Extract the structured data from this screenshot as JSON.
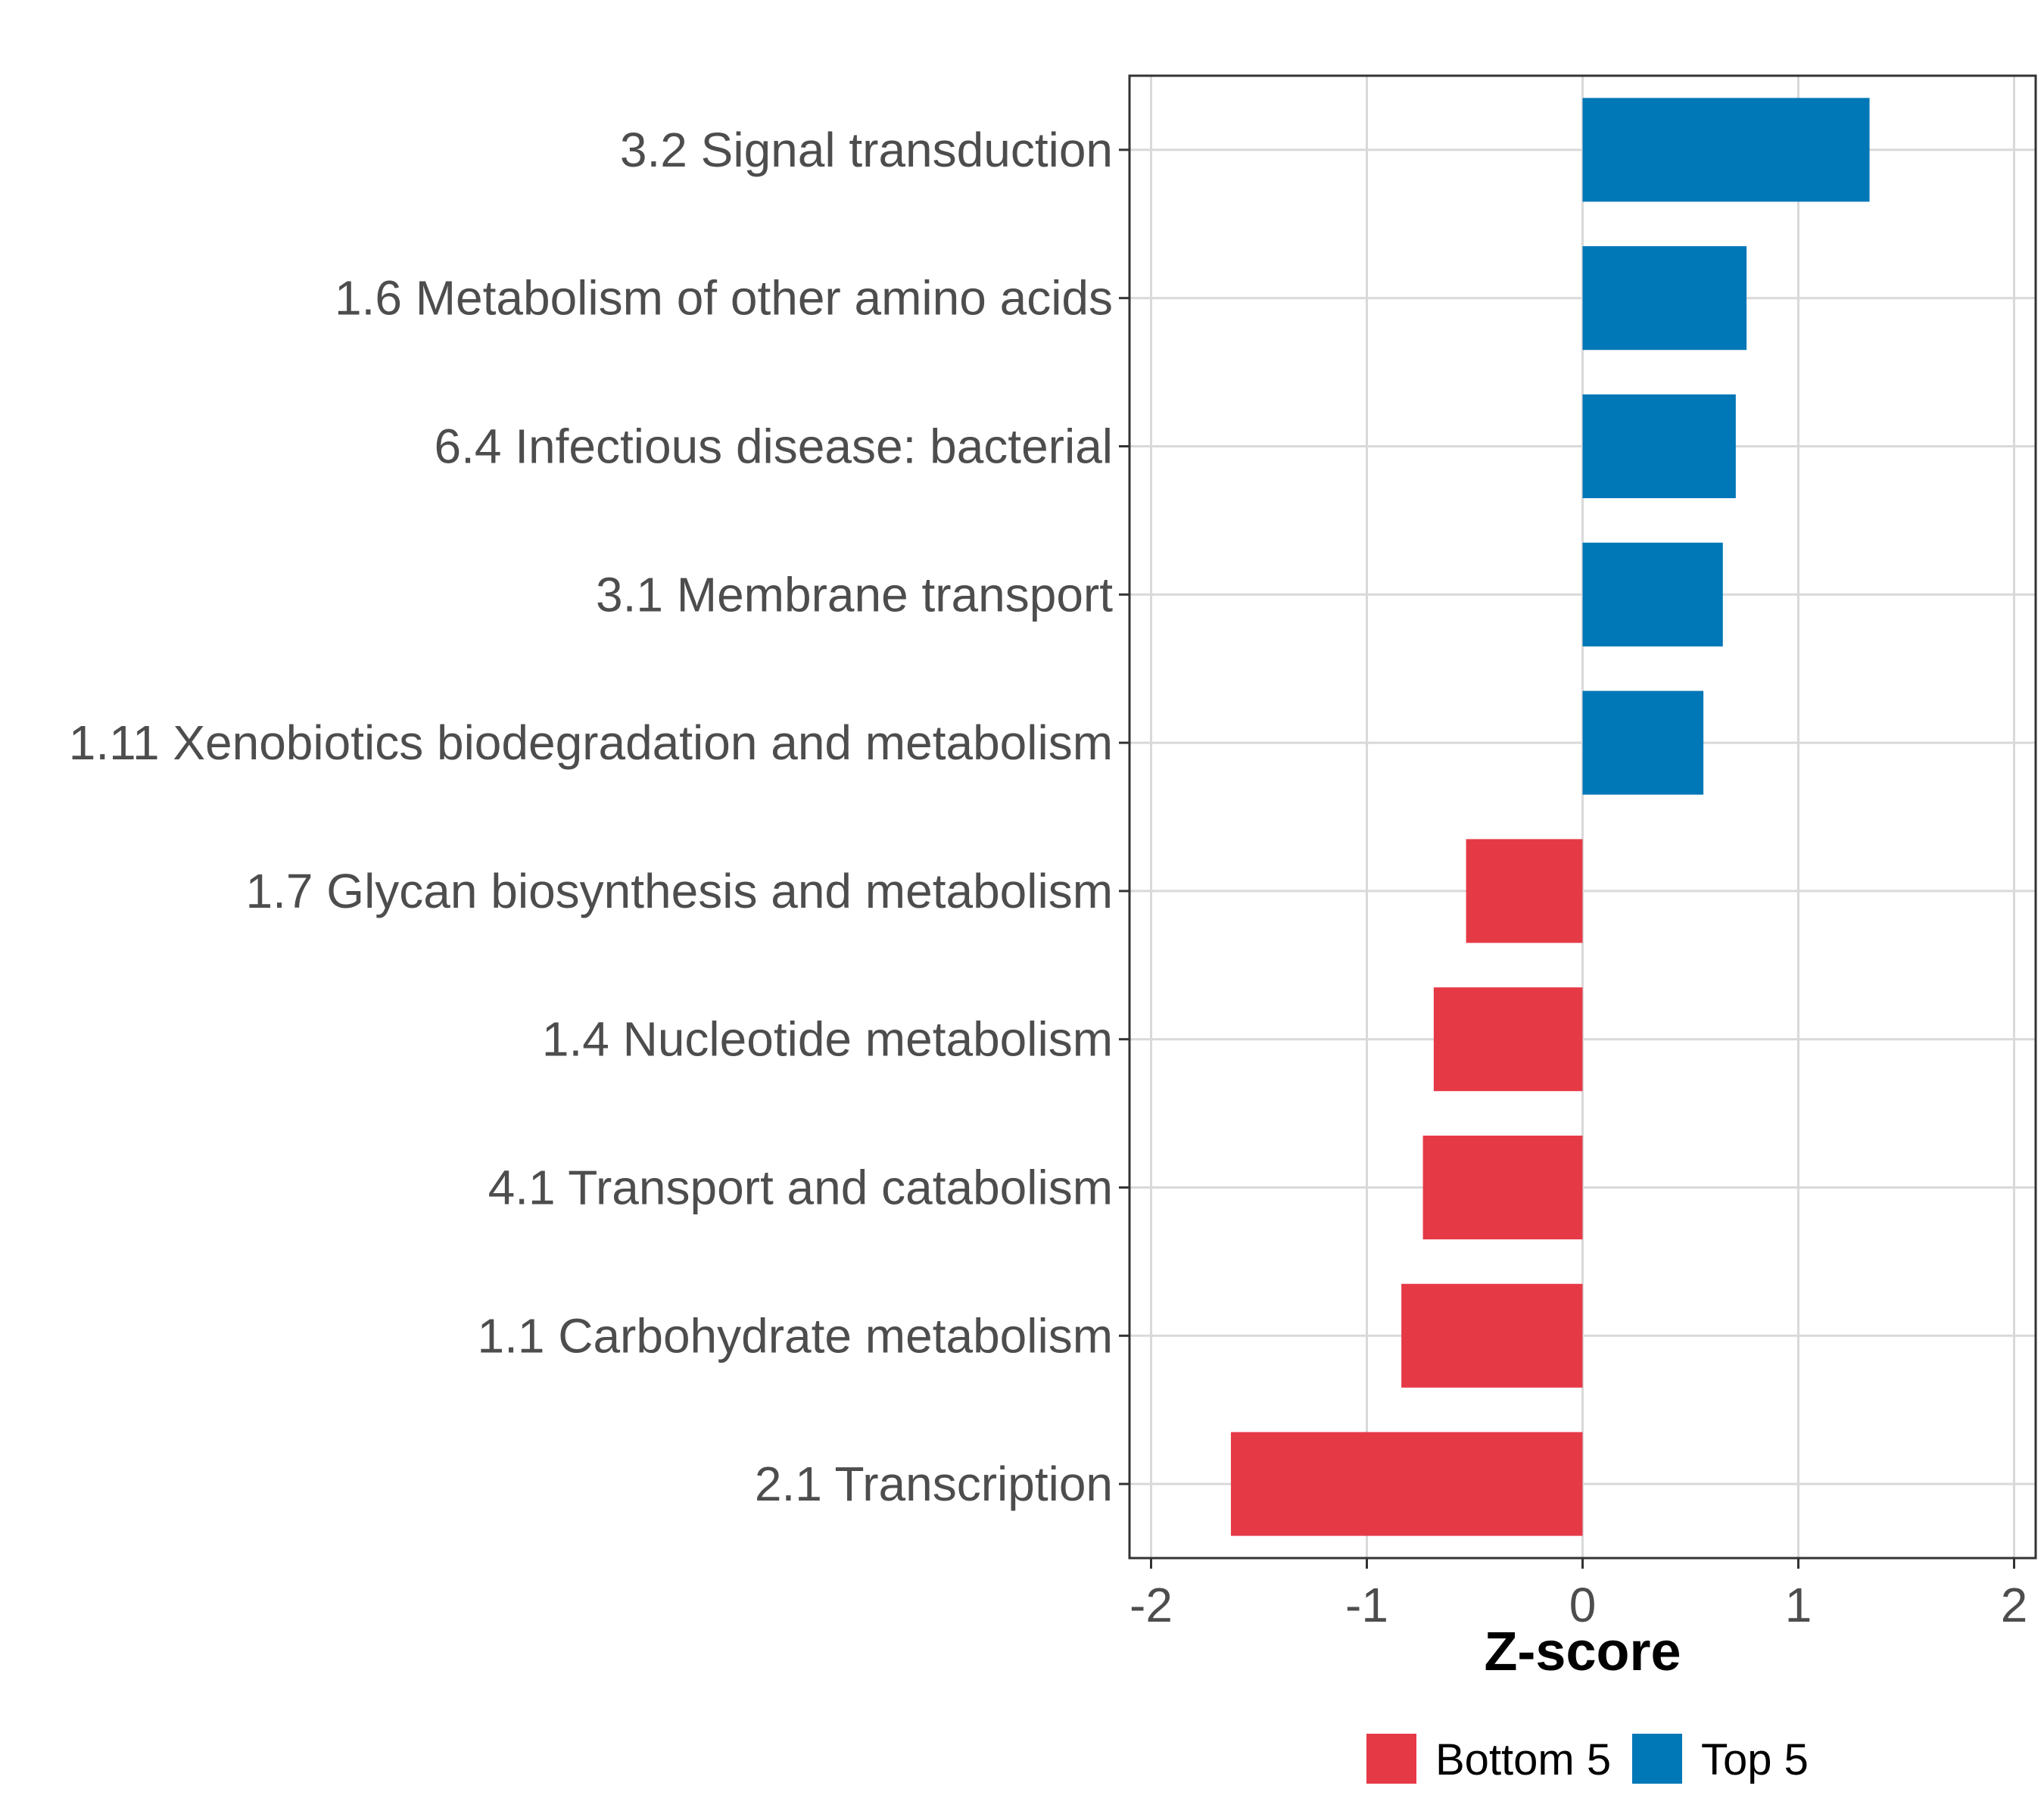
{
  "chart_data": {
    "type": "bar",
    "orientation": "horizontal",
    "title": "",
    "xlabel": "Z-score",
    "ylabel": "",
    "xlim": [
      -2.1,
      2.1
    ],
    "xticks": [
      -2,
      -1,
      0,
      1,
      2
    ],
    "xtick_labels": [
      "-2",
      "-1",
      "0",
      "1",
      "2"
    ],
    "grid": true,
    "categories": [
      "3.2 Signal transduction",
      "1.6 Metabolism of other amino acids",
      "6.4 Infectious disease: bacterial",
      "3.1 Membrane transport",
      "1.11 Xenobiotics biodegradation and metabolism",
      "1.7 Glycan biosynthesis and metabolism",
      "1.4 Nucleotide metabolism",
      "4.1 Transport and catabolism",
      "1.1 Carbohydrate metabolism",
      "2.1 Transcription"
    ],
    "values": [
      1.33,
      0.76,
      0.71,
      0.65,
      0.56,
      -0.54,
      -0.69,
      -0.74,
      -0.84,
      -1.63
    ],
    "groups": [
      "Top 5",
      "Top 5",
      "Top 5",
      "Top 5",
      "Top 5",
      "Bottom 5",
      "Bottom 5",
      "Bottom 5",
      "Bottom 5",
      "Bottom 5"
    ],
    "legend": [
      {
        "name": "Bottom 5",
        "color": "#e63946"
      },
      {
        "name": "Top 5",
        "color": "#0077b6"
      }
    ],
    "legend_position": "bottom"
  }
}
